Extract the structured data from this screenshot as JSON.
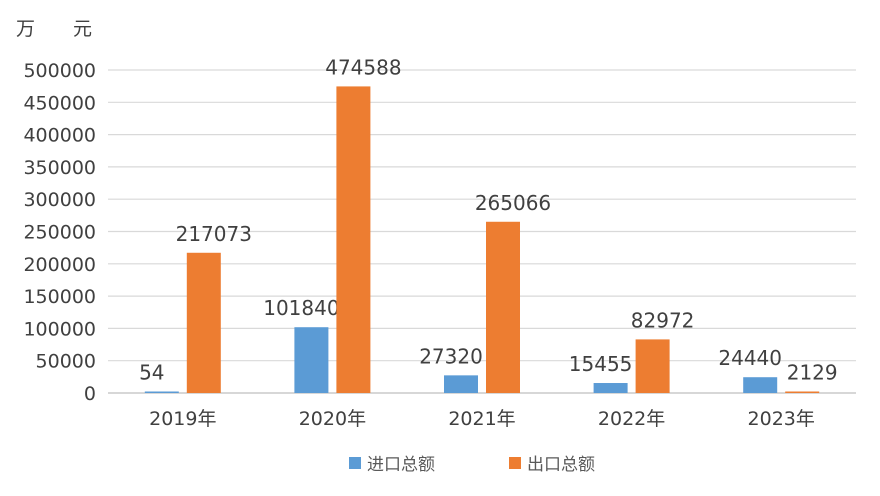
{
  "unit": "万　　元",
  "chart_data": {
    "type": "bar",
    "categories": [
      "2019年",
      "2020年",
      "2021年",
      "2022年",
      "2023年"
    ],
    "series": [
      {
        "name": "进口总额",
        "color": "#5b9bd5",
        "values": [
          54,
          101840,
          27320,
          15455,
          24440
        ]
      },
      {
        "name": "出口总额",
        "color": "#ed7d31",
        "values": [
          217073,
          474588,
          265066,
          82972,
          2129
        ]
      }
    ],
    "ylim": [
      0,
      500000
    ],
    "yticks": [
      "500000",
      "450000",
      "400000",
      "350000",
      "300000",
      "250000",
      "200000",
      "150000",
      "100000",
      "50000",
      "0"
    ],
    "grid": true,
    "legend_position": "bottom"
  }
}
